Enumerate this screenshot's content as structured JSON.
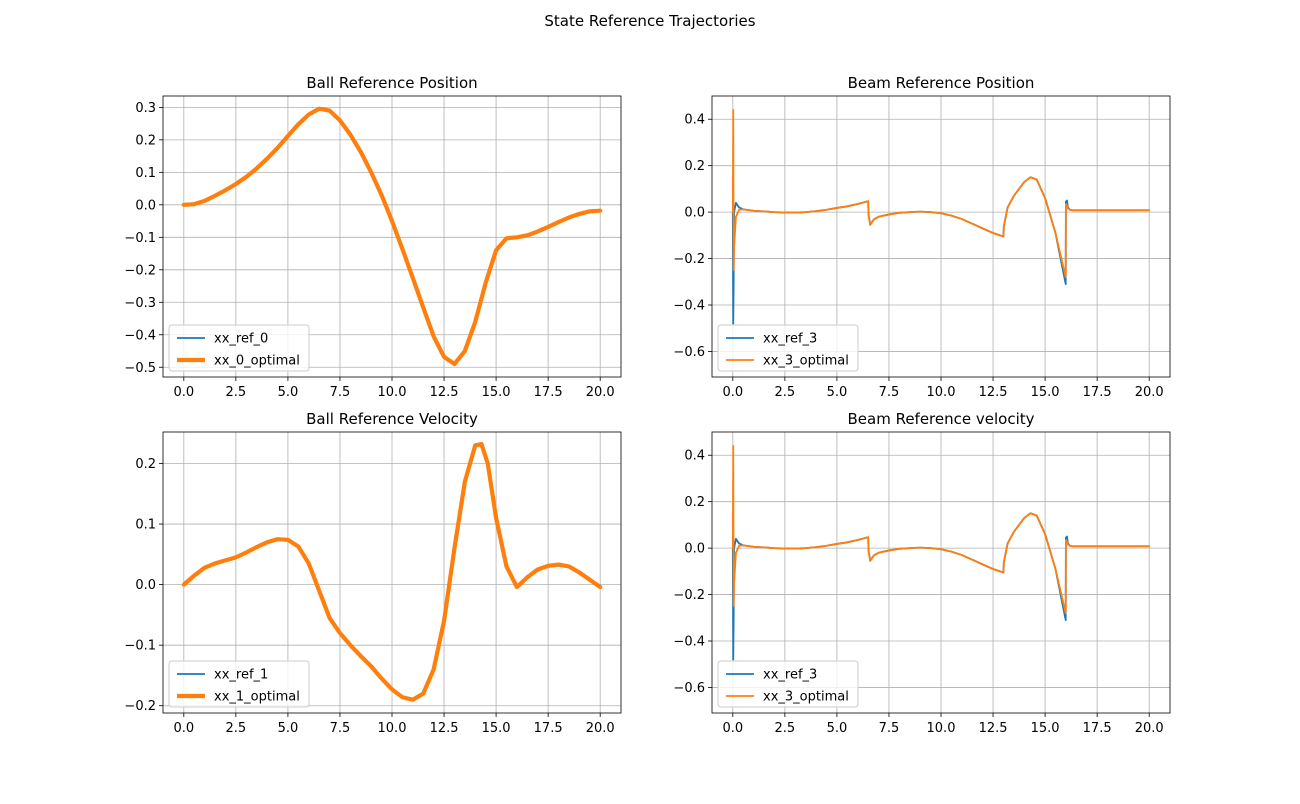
{
  "figure": {
    "suptitle": "State Reference Trajectories"
  },
  "colors": {
    "series_blue": "#1f77b4",
    "series_orange": "#ff7f0e",
    "grid": "#b0b0b0",
    "axis": "#000000"
  },
  "chart_data": [
    {
      "type": "line",
      "title": "Ball Reference Position",
      "xlabel": "",
      "ylabel": "",
      "xlim": [
        -1,
        21
      ],
      "ylim": [
        -0.53,
        0.335
      ],
      "xticks": [
        0.0,
        2.5,
        5.0,
        7.5,
        10.0,
        12.5,
        15.0,
        17.5,
        20.0
      ],
      "xtick_labels": [
        "0.0",
        "2.5",
        "5.0",
        "7.5",
        "10.0",
        "12.5",
        "15.0",
        "17.5",
        "20.0"
      ],
      "yticks": [
        -0.5,
        -0.4,
        -0.3,
        -0.2,
        -0.1,
        0.0,
        0.1,
        0.2,
        0.3
      ],
      "ytick_labels": [
        "−0.5",
        "−0.4",
        "−0.3",
        "−0.2",
        "−0.1",
        "0.0",
        "0.1",
        "0.2",
        "0.3"
      ],
      "grid": true,
      "legend_position": "lower-left",
      "series": [
        {
          "name": "xx_ref_0",
          "color": "#1f77b4",
          "line_width": "thin",
          "x": [
            0,
            0.5,
            1,
            1.5,
            2,
            2.5,
            3,
            3.5,
            4,
            4.5,
            5,
            5.5,
            6,
            6.5,
            7,
            7.5,
            8,
            8.5,
            9,
            9.5,
            10,
            10.5,
            11,
            11.5,
            12,
            12.5,
            13,
            13.5,
            14,
            14.5,
            15,
            15.5,
            16,
            16.5,
            17,
            17.5,
            18,
            18.5,
            19,
            19.5,
            20
          ],
          "y": [
            0.0,
            0.002,
            0.012,
            0.028,
            0.045,
            0.064,
            0.086,
            0.112,
            0.142,
            0.175,
            0.212,
            0.248,
            0.278,
            0.296,
            0.29,
            0.26,
            0.216,
            0.163,
            0.1,
            0.03,
            -0.05,
            -0.136,
            -0.225,
            -0.316,
            -0.405,
            -0.468,
            -0.49,
            -0.45,
            -0.36,
            -0.24,
            -0.14,
            -0.103,
            -0.1,
            -0.094,
            -0.082,
            -0.068,
            -0.053,
            -0.039,
            -0.028,
            -0.02,
            -0.018
          ]
        },
        {
          "name": "xx_0_optimal",
          "color": "#ff7f0e",
          "line_width": "thick",
          "x": [
            0,
            0.5,
            1,
            1.5,
            2,
            2.5,
            3,
            3.5,
            4,
            4.5,
            5,
            5.5,
            6,
            6.5,
            7,
            7.5,
            8,
            8.5,
            9,
            9.5,
            10,
            10.5,
            11,
            11.5,
            12,
            12.5,
            13,
            13.5,
            14,
            14.5,
            15,
            15.5,
            16,
            16.5,
            17,
            17.5,
            18,
            18.5,
            19,
            19.5,
            20
          ],
          "y": [
            0.0,
            0.002,
            0.012,
            0.028,
            0.045,
            0.064,
            0.086,
            0.112,
            0.142,
            0.175,
            0.212,
            0.248,
            0.278,
            0.296,
            0.29,
            0.26,
            0.216,
            0.163,
            0.1,
            0.03,
            -0.05,
            -0.136,
            -0.225,
            -0.316,
            -0.405,
            -0.468,
            -0.49,
            -0.45,
            -0.36,
            -0.24,
            -0.14,
            -0.103,
            -0.1,
            -0.094,
            -0.082,
            -0.068,
            -0.053,
            -0.039,
            -0.028,
            -0.02,
            -0.018
          ]
        }
      ]
    },
    {
      "type": "line",
      "title": "Beam Reference Position",
      "xlabel": "",
      "ylabel": "",
      "xlim": [
        -1,
        21
      ],
      "ylim": [
        -0.71,
        0.5
      ],
      "xticks": [
        0.0,
        2.5,
        5.0,
        7.5,
        10.0,
        12.5,
        15.0,
        17.5,
        20.0
      ],
      "xtick_labels": [
        "0.0",
        "2.5",
        "5.0",
        "7.5",
        "10.0",
        "12.5",
        "15.0",
        "17.5",
        "20.0"
      ],
      "yticks": [
        -0.6,
        -0.4,
        -0.2,
        0.0,
        0.2,
        0.4
      ],
      "ytick_labels": [
        "−0.6",
        "−0.4",
        "−0.2",
        "0.0",
        "0.2",
        "0.4"
      ],
      "grid": true,
      "legend_position": "lower-left",
      "series": [
        {
          "name": "xx_ref_3",
          "color": "#1f77b4",
          "line_width": "thin",
          "x": [
            0,
            0.02,
            0.04,
            0.06,
            0.15,
            0.3,
            0.5,
            1,
            1.5,
            2,
            2.5,
            3,
            3.5,
            4,
            4.5,
            5,
            5.5,
            6,
            6.5,
            6.52,
            6.6,
            6.7,
            6.8,
            7,
            7.5,
            8,
            8.5,
            9,
            9.5,
            10,
            10.5,
            11,
            11.5,
            12,
            12.5,
            13,
            13.02,
            13.2,
            13.5,
            14,
            14.3,
            14.6,
            15,
            15.5,
            15.99,
            16,
            16.05,
            16.1,
            16.2,
            16.3,
            16.5,
            17,
            18,
            19,
            20
          ],
          "y": [
            0.0,
            -0.48,
            -0.3,
            0.0,
            0.04,
            0.02,
            0.012,
            0.006,
            0.003,
            0.0,
            -0.002,
            -0.002,
            0.0,
            0.004,
            0.01,
            0.018,
            0.025,
            0.035,
            0.047,
            -0.01,
            -0.055,
            -0.04,
            -0.03,
            -0.02,
            -0.01,
            -0.003,
            0.0,
            0.002,
            0.0,
            -0.005,
            -0.015,
            -0.03,
            -0.05,
            -0.07,
            -0.09,
            -0.105,
            -0.06,
            0.02,
            0.07,
            0.13,
            0.15,
            0.14,
            0.06,
            -0.09,
            -0.31,
            0.045,
            0.05,
            0.02,
            0.01,
            0.008,
            0.008,
            0.008,
            0.008,
            0.008,
            0.008
          ]
        },
        {
          "name": "xx_3_optimal",
          "color": "#ff7f0e",
          "line_width": "thin",
          "x": [
            0,
            0.02,
            0.04,
            0.06,
            0.15,
            0.3,
            0.5,
            1,
            1.5,
            2,
            2.5,
            3,
            3.5,
            4,
            4.5,
            5,
            5.5,
            6,
            6.5,
            6.52,
            6.6,
            6.7,
            6.8,
            7,
            7.5,
            8,
            8.5,
            9,
            9.5,
            10,
            10.5,
            11,
            11.5,
            12,
            12.5,
            13,
            13.02,
            13.2,
            13.5,
            14,
            14.3,
            14.6,
            15,
            15.5,
            15.99,
            16,
            16.05,
            16.1,
            16.2,
            16.3,
            16.5,
            17,
            18,
            19,
            20
          ],
          "y": [
            0.0,
            0.44,
            -0.25,
            -0.15,
            -0.02,
            0.01,
            0.012,
            0.006,
            0.003,
            0.0,
            -0.002,
            -0.002,
            0.0,
            0.004,
            0.01,
            0.018,
            0.025,
            0.035,
            0.047,
            -0.01,
            -0.055,
            -0.04,
            -0.03,
            -0.02,
            -0.01,
            -0.003,
            0.0,
            0.002,
            0.0,
            -0.005,
            -0.015,
            -0.03,
            -0.05,
            -0.07,
            -0.09,
            -0.105,
            -0.06,
            0.02,
            0.07,
            0.13,
            0.15,
            0.14,
            0.06,
            -0.09,
            -0.28,
            0.035,
            0.03,
            0.015,
            0.01,
            0.008,
            0.008,
            0.008,
            0.008,
            0.008,
            0.008
          ]
        }
      ]
    },
    {
      "type": "line",
      "title": "Ball Reference Velocity",
      "xlabel": "",
      "ylabel": "",
      "xlim": [
        -1,
        21
      ],
      "ylim": [
        -0.212,
        0.252
      ],
      "xticks": [
        0.0,
        2.5,
        5.0,
        7.5,
        10.0,
        12.5,
        15.0,
        17.5,
        20.0
      ],
      "xtick_labels": [
        "0.0",
        "2.5",
        "5.0",
        "7.5",
        "10.0",
        "12.5",
        "15.0",
        "17.5",
        "20.0"
      ],
      "yticks": [
        -0.2,
        -0.1,
        0.0,
        0.1,
        0.2
      ],
      "ytick_labels": [
        "−0.2",
        "−0.1",
        "0.0",
        "0.1",
        "0.2"
      ],
      "grid": true,
      "legend_position": "lower-left",
      "series": [
        {
          "name": "xx_ref_1",
          "color": "#1f77b4",
          "line_width": "thin",
          "x": [
            0,
            0.5,
            1,
            1.5,
            2,
            2.5,
            3,
            3.5,
            4,
            4.5,
            5,
            5.5,
            6,
            6.5,
            7,
            7.5,
            8,
            8.5,
            9,
            9.5,
            10,
            10.5,
            11,
            11.5,
            12,
            12.5,
            13,
            13.5,
            14,
            14.3,
            14.6,
            15,
            15.5,
            16,
            16.5,
            17,
            17.5,
            18,
            18.5,
            19,
            19.5,
            20
          ],
          "y": [
            0.0,
            0.015,
            0.028,
            0.035,
            0.04,
            0.045,
            0.053,
            0.062,
            0.07,
            0.075,
            0.074,
            0.063,
            0.035,
            -0.01,
            -0.055,
            -0.08,
            -0.1,
            -0.118,
            -0.135,
            -0.155,
            -0.173,
            -0.186,
            -0.19,
            -0.18,
            -0.14,
            -0.06,
            0.06,
            0.17,
            0.23,
            0.232,
            0.2,
            0.11,
            0.03,
            -0.004,
            0.012,
            0.025,
            0.031,
            0.033,
            0.03,
            0.02,
            0.008,
            -0.004
          ]
        },
        {
          "name": "xx_1_optimal",
          "color": "#ff7f0e",
          "line_width": "thick",
          "x": [
            0,
            0.5,
            1,
            1.5,
            2,
            2.5,
            3,
            3.5,
            4,
            4.5,
            5,
            5.5,
            6,
            6.5,
            7,
            7.5,
            8,
            8.5,
            9,
            9.5,
            10,
            10.5,
            11,
            11.5,
            12,
            12.5,
            13,
            13.5,
            14,
            14.3,
            14.6,
            15,
            15.5,
            16,
            16.5,
            17,
            17.5,
            18,
            18.5,
            19,
            19.5,
            20
          ],
          "y": [
            0.0,
            0.015,
            0.028,
            0.035,
            0.04,
            0.045,
            0.053,
            0.062,
            0.07,
            0.075,
            0.074,
            0.063,
            0.035,
            -0.01,
            -0.055,
            -0.08,
            -0.1,
            -0.118,
            -0.135,
            -0.155,
            -0.173,
            -0.186,
            -0.19,
            -0.18,
            -0.14,
            -0.06,
            0.06,
            0.17,
            0.23,
            0.232,
            0.2,
            0.11,
            0.03,
            -0.004,
            0.012,
            0.025,
            0.031,
            0.033,
            0.03,
            0.02,
            0.008,
            -0.004
          ]
        }
      ]
    },
    {
      "type": "line",
      "title": "Beam Reference velocity",
      "xlabel": "",
      "ylabel": "",
      "xlim": [
        -1,
        21
      ],
      "ylim": [
        -0.71,
        0.5
      ],
      "xticks": [
        0.0,
        2.5,
        5.0,
        7.5,
        10.0,
        12.5,
        15.0,
        17.5,
        20.0
      ],
      "xtick_labels": [
        "0.0",
        "2.5",
        "5.0",
        "7.5",
        "10.0",
        "12.5",
        "15.0",
        "17.5",
        "20.0"
      ],
      "yticks": [
        -0.6,
        -0.4,
        -0.2,
        0.0,
        0.2,
        0.4
      ],
      "ytick_labels": [
        "−0.6",
        "−0.4",
        "−0.2",
        "0.0",
        "0.2",
        "0.4"
      ],
      "grid": true,
      "legend_position": "lower-left",
      "series": [
        {
          "name": "xx_ref_3",
          "color": "#1f77b4",
          "line_width": "thin",
          "x": [
            0,
            0.02,
            0.04,
            0.06,
            0.15,
            0.3,
            0.5,
            1,
            1.5,
            2,
            2.5,
            3,
            3.5,
            4,
            4.5,
            5,
            5.5,
            6,
            6.5,
            6.52,
            6.6,
            6.7,
            6.8,
            7,
            7.5,
            8,
            8.5,
            9,
            9.5,
            10,
            10.5,
            11,
            11.5,
            12,
            12.5,
            13,
            13.02,
            13.2,
            13.5,
            14,
            14.3,
            14.6,
            15,
            15.5,
            15.99,
            16,
            16.05,
            16.1,
            16.2,
            16.3,
            16.5,
            17,
            18,
            19,
            20
          ],
          "y": [
            0.0,
            -0.48,
            -0.3,
            0.0,
            0.04,
            0.02,
            0.012,
            0.006,
            0.003,
            0.0,
            -0.002,
            -0.002,
            0.0,
            0.004,
            0.01,
            0.018,
            0.025,
            0.035,
            0.047,
            -0.01,
            -0.055,
            -0.04,
            -0.03,
            -0.02,
            -0.01,
            -0.003,
            0.0,
            0.002,
            0.0,
            -0.005,
            -0.015,
            -0.03,
            -0.05,
            -0.07,
            -0.09,
            -0.105,
            -0.06,
            0.02,
            0.07,
            0.13,
            0.15,
            0.14,
            0.06,
            -0.09,
            -0.31,
            0.045,
            0.05,
            0.02,
            0.01,
            0.008,
            0.008,
            0.008,
            0.008,
            0.008,
            0.008
          ]
        },
        {
          "name": "xx_3_optimal",
          "color": "#ff7f0e",
          "line_width": "thin",
          "x": [
            0,
            0.02,
            0.04,
            0.06,
            0.15,
            0.3,
            0.5,
            1,
            1.5,
            2,
            2.5,
            3,
            3.5,
            4,
            4.5,
            5,
            5.5,
            6,
            6.5,
            6.52,
            6.6,
            6.7,
            6.8,
            7,
            7.5,
            8,
            8.5,
            9,
            9.5,
            10,
            10.5,
            11,
            11.5,
            12,
            12.5,
            13,
            13.02,
            13.2,
            13.5,
            14,
            14.3,
            14.6,
            15,
            15.5,
            15.99,
            16,
            16.05,
            16.1,
            16.2,
            16.3,
            16.5,
            17,
            18,
            19,
            20
          ],
          "y": [
            0.0,
            0.44,
            -0.25,
            -0.15,
            -0.02,
            0.01,
            0.012,
            0.006,
            0.003,
            0.0,
            -0.002,
            -0.002,
            0.0,
            0.004,
            0.01,
            0.018,
            0.025,
            0.035,
            0.047,
            -0.01,
            -0.055,
            -0.04,
            -0.03,
            -0.02,
            -0.01,
            -0.003,
            0.0,
            0.002,
            0.0,
            -0.005,
            -0.015,
            -0.03,
            -0.05,
            -0.07,
            -0.09,
            -0.105,
            -0.06,
            0.02,
            0.07,
            0.13,
            0.15,
            0.14,
            0.06,
            -0.09,
            -0.28,
            0.035,
            0.03,
            0.015,
            0.01,
            0.008,
            0.008,
            0.008,
            0.008,
            0.008,
            0.008
          ]
        }
      ]
    }
  ]
}
